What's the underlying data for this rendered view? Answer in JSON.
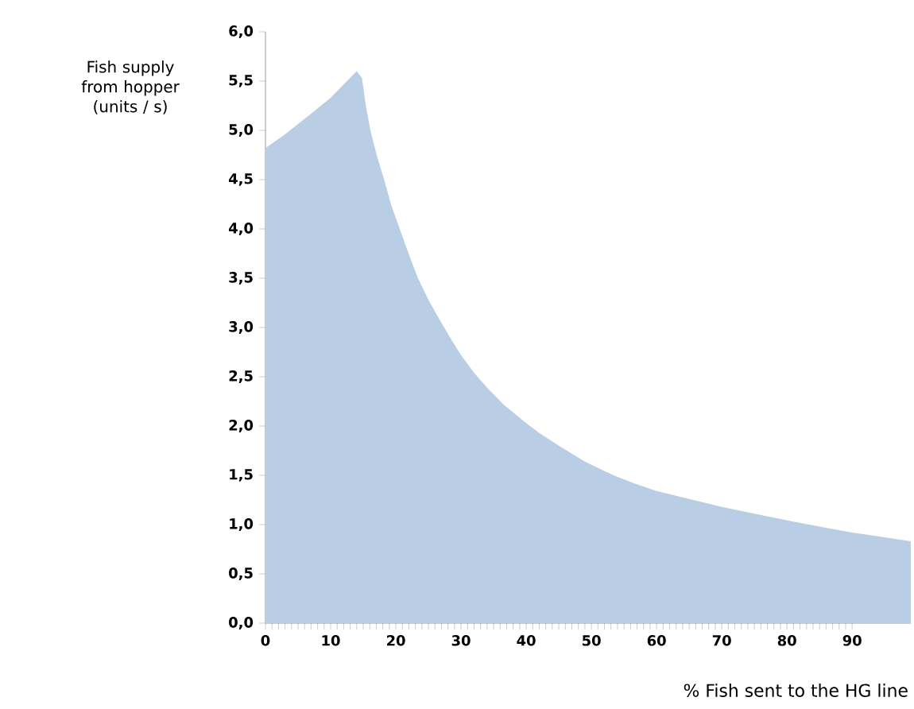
{
  "chart_data": {
    "type": "area",
    "xlabel": "% Fish sent to the HG line",
    "ylabel": "Fish supply from hopper (units / s)",
    "x": [
      0,
      3,
      7,
      10,
      14,
      14.8,
      15.4,
      16.1,
      17.1,
      18.2,
      19.3,
      20.6,
      22,
      23.4,
      25,
      26.7,
      28.3,
      30,
      32,
      34,
      36.5,
      39.6,
      42,
      45,
      49,
      53.4,
      56.5,
      60,
      65,
      70,
      75,
      81,
      85,
      90,
      95,
      99
    ],
    "values": [
      4.82,
      4.96,
      5.17,
      5.33,
      5.6,
      5.53,
      5.25,
      5.0,
      4.74,
      4.5,
      4.24,
      4.0,
      3.74,
      3.5,
      3.28,
      3.08,
      2.9,
      2.72,
      2.54,
      2.39,
      2.22,
      2.05,
      1.93,
      1.8,
      1.64,
      1.5,
      1.42,
      1.34,
      1.26,
      1.18,
      1.11,
      1.03,
      0.98,
      0.92,
      0.87,
      0.83
    ],
    "color": "#b9cde5",
    "xlim": [
      0,
      99
    ],
    "ylim": [
      0,
      6
    ],
    "xticks": [
      0,
      10,
      20,
      30,
      40,
      50,
      60,
      70,
      80,
      90
    ],
    "yticks": [
      {
        "value": 0,
        "label": "0,0"
      },
      {
        "value": 0.5,
        "label": "0,5"
      },
      {
        "value": 1,
        "label": "1,0"
      },
      {
        "value": 1.5,
        "label": "1,5"
      },
      {
        "value": 2,
        "label": "2,0"
      },
      {
        "value": 2.5,
        "label": "2,5"
      },
      {
        "value": 3,
        "label": "3,0"
      },
      {
        "value": 3.5,
        "label": "3,5"
      },
      {
        "value": 4,
        "label": "4,0"
      },
      {
        "value": 4.5,
        "label": "4,5"
      },
      {
        "value": 5,
        "label": "5,0"
      },
      {
        "value": 5.5,
        "label": "5,5"
      },
      {
        "value": 6,
        "label": "6,0"
      }
    ],
    "grid": false
  }
}
